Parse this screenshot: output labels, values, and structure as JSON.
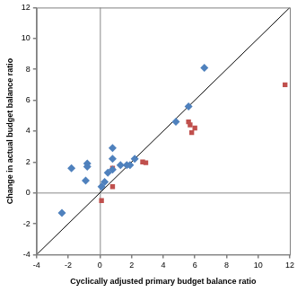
{
  "chart_data": {
    "type": "scatter",
    "x_label": "Cyclically adjusted primary budget balance ratio",
    "y_label": "Change in actual budget balance ratio",
    "xlim": [
      -4,
      12
    ],
    "ylim": [
      -4,
      12
    ],
    "xticks": [
      -4,
      -2,
      0,
      2,
      4,
      6,
      8,
      10,
      12
    ],
    "yticks": [
      -4,
      -2,
      0,
      2,
      4,
      6,
      8,
      10,
      12
    ],
    "grid": false,
    "series": [
      {
        "color": "#4f81bd",
        "marker": "diamond",
        "x": [
          -2.4,
          -1.8,
          -0.8,
          -0.8,
          -0.9,
          0.1,
          0.3,
          0.5,
          0.8,
          0.8,
          0.8,
          1.3,
          1.7,
          1.9,
          2.2,
          4.8,
          5.6,
          6.6
        ],
        "values": [
          -1.3,
          1.6,
          1.9,
          1.7,
          0.8,
          0.4,
          0.7,
          1.3,
          1.5,
          2.2,
          2.9,
          1.8,
          1.8,
          1.8,
          2.2,
          4.6,
          5.6,
          8.1
        ]
      },
      {
        "color": "#c0504d",
        "marker": "square",
        "x": [
          0.1,
          0.8,
          0.8,
          2.7,
          2.9,
          5.6,
          5.7,
          5.8,
          6.0,
          11.7
        ],
        "values": [
          -0.5,
          1.6,
          0.4,
          2.0,
          1.95,
          4.6,
          4.4,
          3.9,
          4.2,
          7.0
        ]
      },
      {
        "type": "line",
        "color": "#000000",
        "line_style": "solid",
        "x": [
          -4,
          12
        ],
        "values": [
          -4,
          12
        ]
      }
    ]
  }
}
